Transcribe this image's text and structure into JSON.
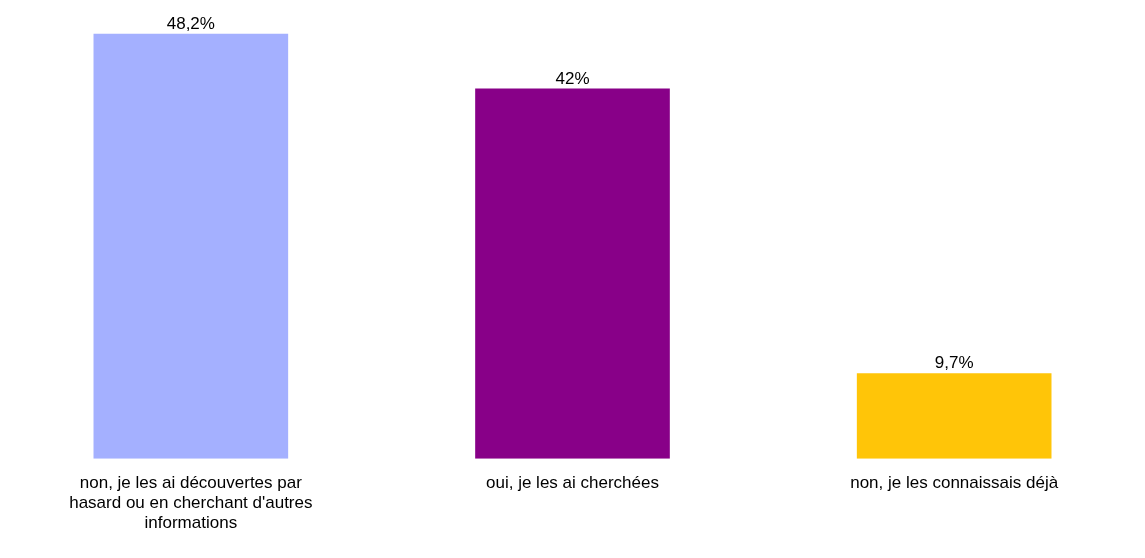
{
  "chart_data": {
    "type": "bar",
    "categories": [
      "non, je les ai découvertes par hasard ou en cherchant d'autres informations",
      "oui, je les ai cherchées",
      "non, je les connaissais déjà"
    ],
    "values": [
      48.2,
      42,
      9.7
    ],
    "colors": [
      "#a4b0ff",
      "#880088",
      "#ffc508"
    ],
    "value_labels": [
      "48,2%",
      "42%",
      "9,7%"
    ],
    "grid": false,
    "legend": false
  }
}
